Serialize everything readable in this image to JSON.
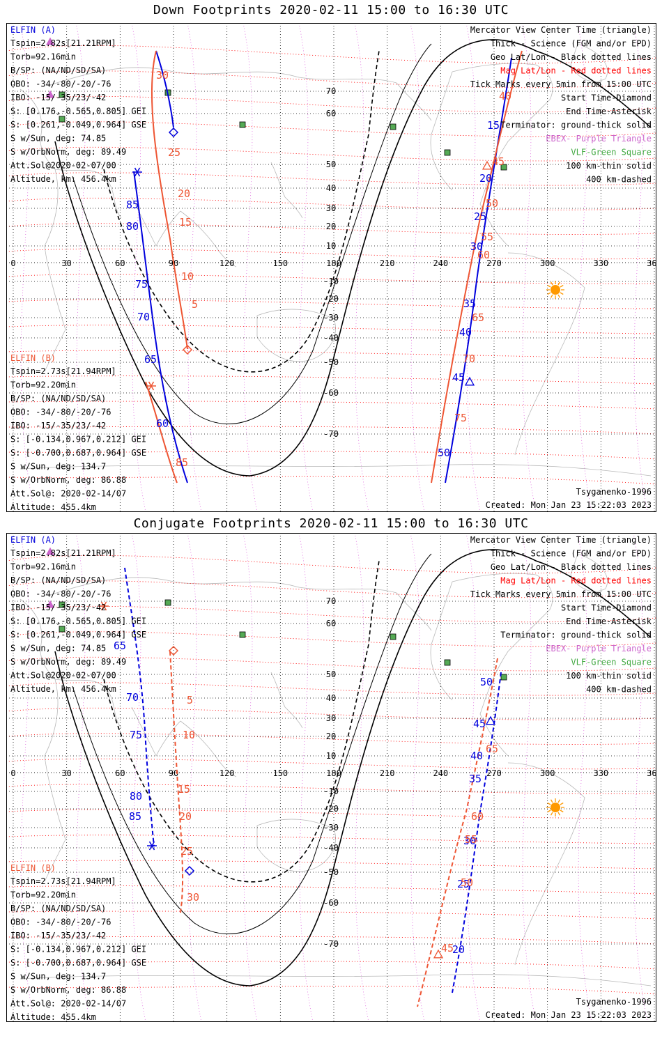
{
  "colors": {
    "elfin_a": "#0000dd",
    "elfin_b": "#ee5533",
    "mag_grid": "#ff0000",
    "geo_grid": "#000000",
    "ebex": "#cc66cc",
    "vlf": "#44aa44",
    "coast": "#b8b8b8",
    "sun": "#ff9900"
  },
  "panels": [
    {
      "id": "down",
      "title": "Down Footprints 2020-02-11 15:00 to 16:30 UTC",
      "elfin_a": {
        "header": "ELFIN (A)",
        "lines": [
          "Tspin=2.82s[21.21RPM]",
          "Torb=92.16min",
          "B/SP: (NA/ND/SD/SA)",
          "OBO: -34/-80/-20/-76",
          "IBO: -15/-35/23/-42",
          "S: [0.176,-0.565,0.805] GEI",
          "S: [0.261,-0.049,0.964] GSE",
          "S w/Sun, deg: 74.85",
          "S w/OrbNorm, deg: 89.49",
          "Att.Sol@2020-02-07/00",
          "Altitude, km: 456.4km"
        ]
      },
      "elfin_b": {
        "header": "ELFIN (B)",
        "lines": [
          "Tspin=2.73s[21.94RPM]",
          "Torb=92.20min",
          "B/SP: (NA/ND/SD/SA)",
          "OBO: -34/-80/-20/-76",
          "IBO: -15/-35/23/-42",
          "S: [-0.134,0.967,0.212] GEI",
          "S: [-0.700,0.687,0.964] GSE",
          "S w/Sun, deg: 134.7",
          "S w/OrbNorm, deg: 86.88",
          "Att.Sol@: 2020-02-14/07",
          "Altitude: 455.4km"
        ]
      },
      "legend": [
        "Mercator View Center Time (triangle)",
        "Thick - Science (FGM and/or EPD)",
        "Geo Lat/Lon - Black dotted lines",
        "Mag Lat/Lon - Red dotted lines",
        "Tick Marks every 5min from 15:00 UTC",
        "Start Time-Diamond",
        "End Time-Asterisk",
        "Terminator: ground-thick solid",
        "EBEX- Purple Triangle",
        "VLF-Green Square",
        "100 km-thin solid",
        "400 km-dashed"
      ],
      "model": "Tsyganenko-1996",
      "created": "Created: Mon Jan 23 15:22:03 2023",
      "lon_ticks": [
        "0",
        "30",
        "60",
        "90",
        "120",
        "150",
        "180",
        "210",
        "240",
        "270",
        "300",
        "330",
        "360"
      ],
      "lat_labels": [
        "70",
        "60",
        "50",
        "40",
        "30",
        "20",
        "10",
        "-10",
        "-20",
        "-30",
        "-40",
        "-50",
        "-60",
        "-70"
      ],
      "track_a_w_labels": [
        "85",
        "80",
        "75",
        "70",
        "65",
        "60"
      ],
      "track_b_w_labels": [
        "30",
        "25",
        "20",
        "15",
        "10",
        "5"
      ],
      "track_b_w_bottom_label": "85",
      "track_a_e_labels": [
        "15",
        "20",
        "25",
        "30",
        "35",
        "40",
        "45",
        "50"
      ],
      "track_b_e_labels": [
        "40",
        "45",
        "50",
        "55",
        "60",
        "65",
        "70",
        "75"
      ]
    },
    {
      "id": "conj",
      "title": "Conjugate Footprints 2020-02-11 15:00 to 16:30 UTC",
      "elfin_a": {
        "header": "ELFIN (A)",
        "lines": [
          "Tspin=2.82s[21.21RPM]",
          "Torb=92.16min",
          "B/SP: (NA/ND/SD/SA)",
          "OBO: -34/-80/-20/-76",
          "IBO: -15/-35/23/-42",
          "S: [0.176,-0.565,0.805] GEI",
          "S: [0.261,-0.049,0.964] GSE",
          "S w/Sun, deg: 74.85",
          "S w/OrbNorm, deg: 89.49",
          "Att.Sol@2020-02-07/00",
          "Altitude, km: 456.4km"
        ]
      },
      "elfin_b": {
        "header": "ELFIN (B)",
        "lines": [
          "Tspin=2.73s[21.94RPM]",
          "Torb=92.20min",
          "B/SP: (NA/ND/SD/SA)",
          "OBO: -34/-80/-20/-76",
          "IBO: -15/-35/23/-42",
          "S: [-0.134,0.967,0.212] GEI",
          "S: [-0.700,0.687,0.964] GSE",
          "S w/Sun, deg: 134.7",
          "S w/OrbNorm, deg: 86.88",
          "Att.Sol@: 2020-02-14/07",
          "Altitude: 455.4km"
        ]
      },
      "legend": [
        "Mercator View Center Time (triangle)",
        "Thick - Science (FGM and/or EPD)",
        "Geo Lat/Lon - Black dotted lines",
        "Mag Lat/Lon - Red dotted lines",
        "Tick Marks every 5min from 15:00 UTC",
        "Start Time-Diamond",
        "End Time-Asterisk",
        "Terminator: ground-thick solid",
        "EBEX- Purple Triangle",
        "VLF-Green Square",
        "100 km-thin solid",
        "400 km-dashed"
      ],
      "model": "Tsyganenko-1996",
      "created": "Created: Mon Jan 23 15:22:03 2023",
      "lon_ticks": [
        "0",
        "30",
        "60",
        "90",
        "120",
        "150",
        "180",
        "210",
        "240",
        "270",
        "300",
        "330",
        "360"
      ],
      "lat_labels": [
        "70",
        "60",
        "50",
        "40",
        "30",
        "20",
        "10",
        "-10",
        "-20",
        "-30",
        "-40",
        "-50",
        "-60",
        "-70"
      ],
      "track_a_w_labels": [
        "65",
        "70",
        "75",
        "80",
        "85"
      ],
      "track_b_w_labels": [
        "5",
        "10",
        "15",
        "20",
        "25",
        "30"
      ],
      "track_a_e_labels": [
        "50",
        "45",
        "40",
        "35",
        "30",
        "25",
        "20"
      ],
      "track_b_e_labels": [
        "65",
        "60",
        "55",
        "50",
        "45"
      ]
    }
  ]
}
